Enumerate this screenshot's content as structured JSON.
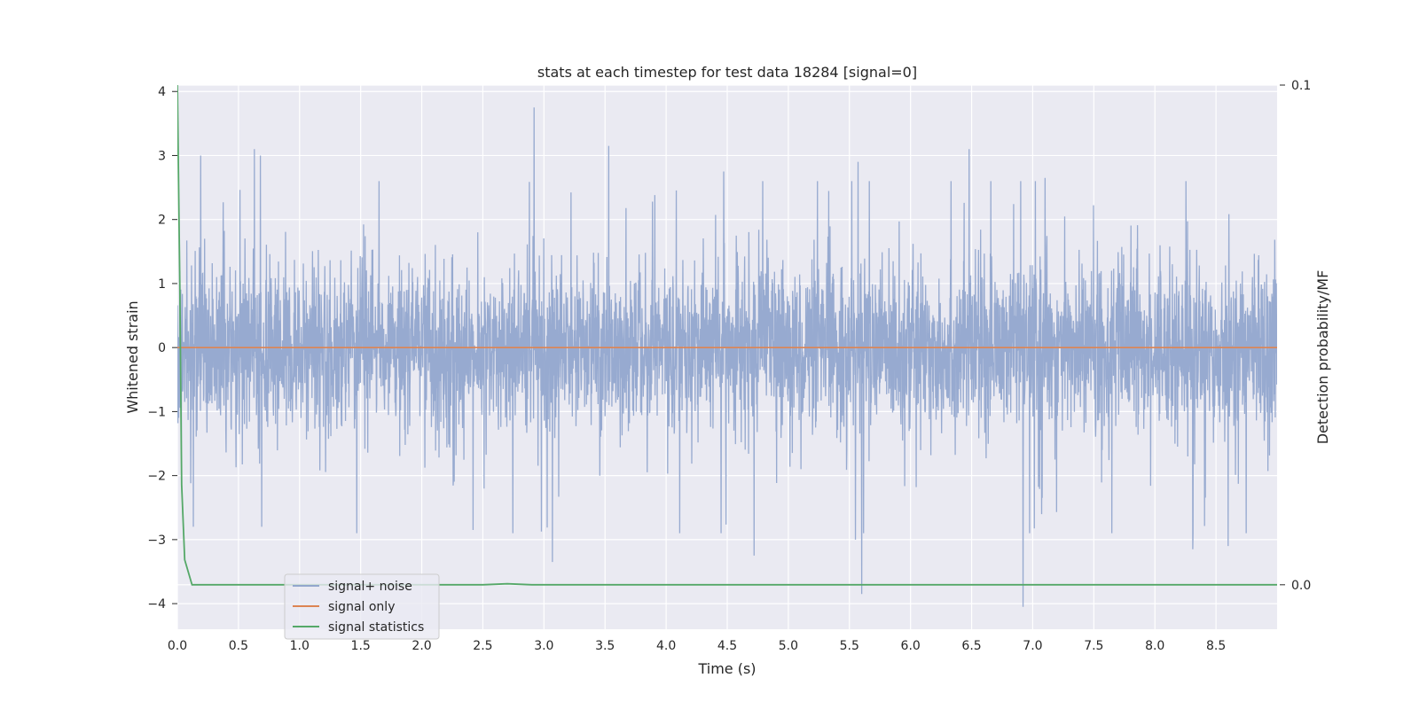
{
  "chart_data": {
    "type": "line",
    "title": "stats at each timestep for test data 18284 [signal=0]",
    "xlabel": "Time (s)",
    "ylabel": "Whitened strain",
    "y2label": "Detection probability/MF",
    "xlim": [
      0.0,
      9.0
    ],
    "ylim": [
      -4.4,
      4.1
    ],
    "y2lim": [
      -0.0089,
      0.1
    ],
    "x_ticks": [
      "0.0",
      "0.5",
      "1.0",
      "1.5",
      "2.0",
      "2.5",
      "3.0",
      "3.5",
      "4.0",
      "4.5",
      "5.0",
      "5.5",
      "6.0",
      "6.5",
      "7.0",
      "7.5",
      "8.0",
      "8.5"
    ],
    "y_ticks": [
      "−4",
      "−3",
      "−2",
      "−1",
      "0",
      "1",
      "2",
      "3",
      "4"
    ],
    "y2_ticks": [
      "0.0",
      "0.1"
    ],
    "grid": true,
    "legend_position": "lower-left",
    "legend": [
      "signal+ noise",
      "signal only",
      "signal statistics"
    ],
    "series": [
      {
        "name": "signal+ noise",
        "axis": "left",
        "color": "#92a6cd",
        "style": "dense noise trace, bulk within about −1.4 to 1.4",
        "peaks_x": [
          0.19,
          0.63,
          0.68,
          2.92,
          3.53,
          4.47,
          5.57,
          6.48,
          6.92,
          7.1
        ],
        "peaks_y": [
          3.0,
          3.1,
          3.0,
          3.75,
          3.15,
          2.75,
          2.9,
          3.1,
          2.75,
          2.65
        ],
        "troughs_x": [
          0.13,
          0.69,
          2.42,
          3.07,
          4.45,
          4.72,
          5.55,
          5.6,
          6.92,
          8.31,
          8.6
        ],
        "troughs_y": [
          -2.8,
          -2.8,
          -2.85,
          -3.35,
          -2.9,
          -3.25,
          -3.0,
          -3.85,
          -4.05,
          -3.15,
          -3.1
        ]
      },
      {
        "name": "signal only",
        "axis": "left",
        "color": "#dd8452",
        "x": [
          0.0,
          9.0
        ],
        "y": [
          0.0,
          0.0
        ]
      },
      {
        "name": "signal statistics",
        "axis": "right",
        "color": "#55a868",
        "x": [
          0.0,
          0.02,
          0.035,
          0.06,
          0.12,
          2.5,
          2.7,
          2.9,
          9.0
        ],
        "y": [
          0.1,
          0.06,
          0.02,
          0.005,
          0.0,
          0.0,
          0.0002,
          0.0,
          0.0
        ]
      }
    ]
  }
}
